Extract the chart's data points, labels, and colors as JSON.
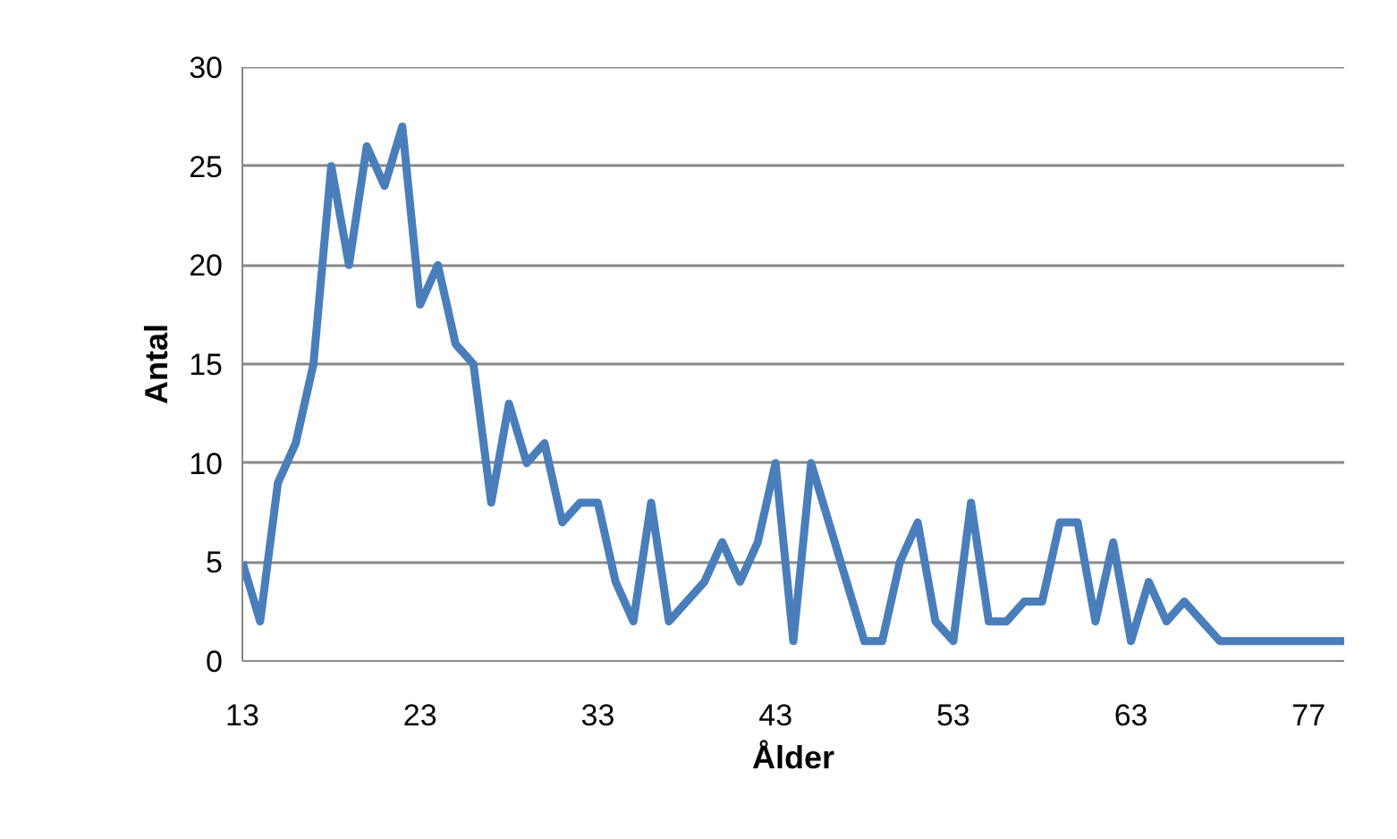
{
  "chart_data": {
    "type": "line",
    "xlabel": "Ålder",
    "ylabel": "Antal",
    "categories": [
      "13",
      null,
      null,
      null,
      null,
      null,
      null,
      null,
      null,
      null,
      "23",
      null,
      null,
      null,
      null,
      null,
      null,
      null,
      null,
      null,
      "33",
      null,
      null,
      null,
      null,
      null,
      null,
      null,
      null,
      null,
      "43",
      null,
      null,
      null,
      null,
      null,
      null,
      null,
      null,
      null,
      "53",
      null,
      null,
      null,
      null,
      null,
      null,
      null,
      null,
      null,
      "63",
      null,
      null,
      null,
      null,
      null,
      null,
      null,
      null,
      null,
      "77",
      null,
      null
    ],
    "series": [
      {
        "color": "#4a7ebb",
        "values": [
          5,
          2,
          9,
          11,
          15,
          25,
          20,
          26,
          24,
          27,
          18,
          20,
          16,
          15,
          8,
          13,
          10,
          11,
          7,
          8,
          8,
          4,
          2,
          8,
          2,
          3,
          4,
          6,
          4,
          6,
          10,
          1,
          10,
          7,
          4,
          1,
          1,
          5,
          7,
          2,
          1,
          8,
          2,
          2,
          3,
          3,
          7,
          7,
          2,
          6,
          1,
          4,
          2,
          3,
          2,
          1,
          1,
          1,
          1,
          1,
          1,
          1,
          1
        ]
      }
    ],
    "ylim": [
      0,
      30
    ],
    "yticks": [
      0,
      5,
      10,
      15,
      20,
      25,
      30
    ],
    "grid": "y"
  }
}
